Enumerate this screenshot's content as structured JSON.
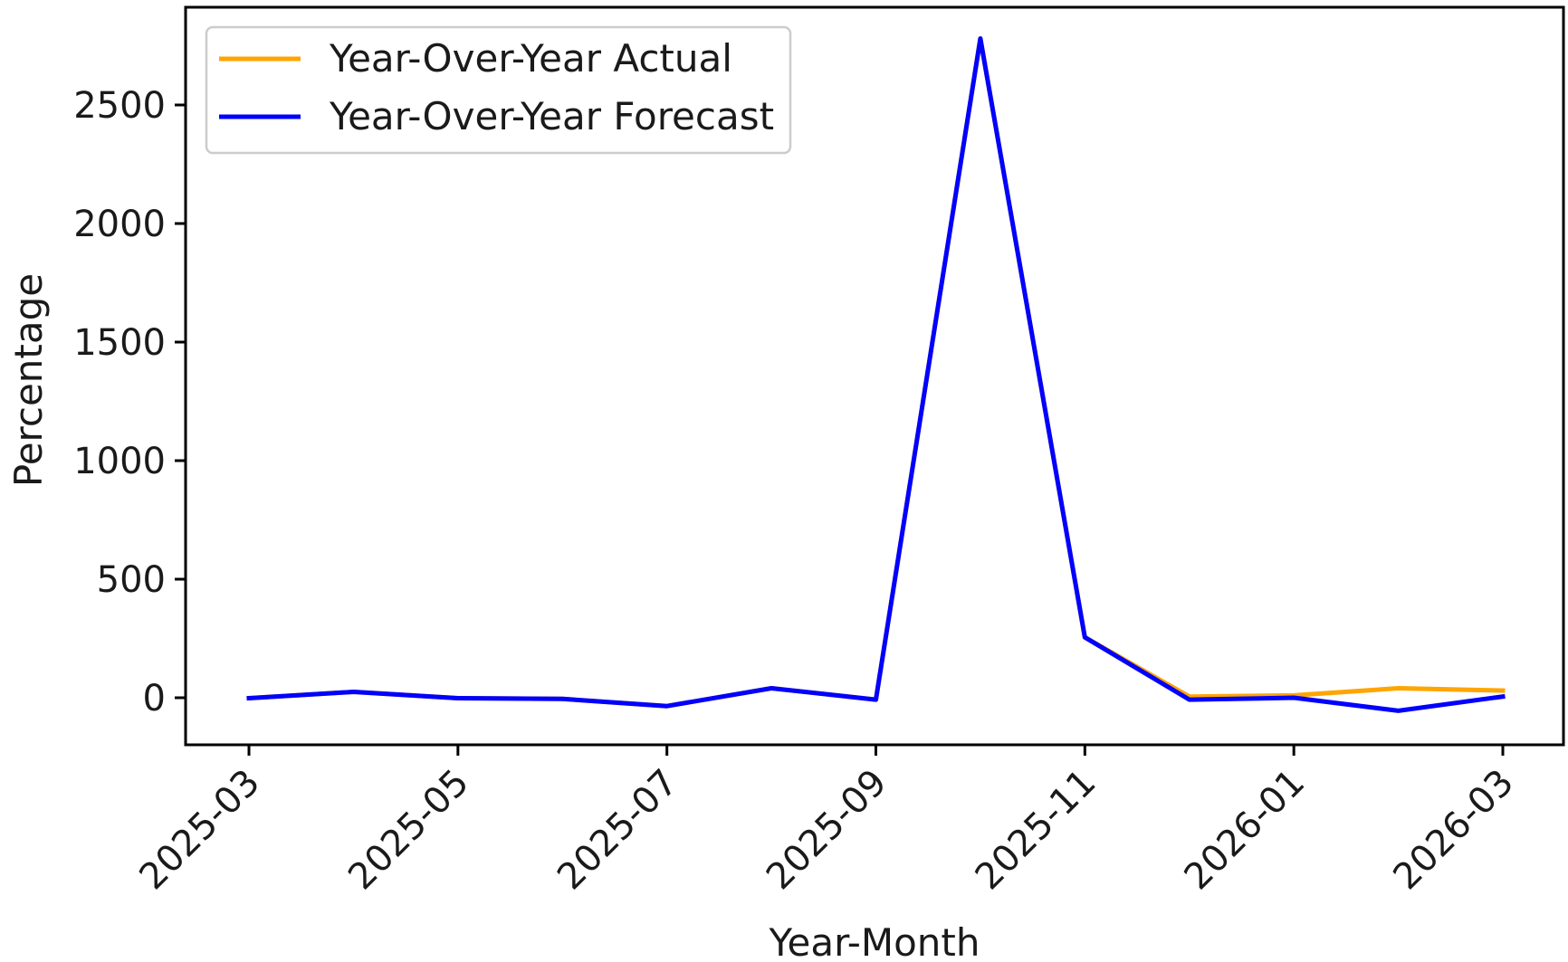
{
  "chart_data": {
    "type": "line",
    "title": "",
    "xlabel": "Year-Month",
    "ylabel": "Percentage",
    "x": [
      "2025-03",
      "2025-04",
      "2025-05",
      "2025-06",
      "2025-07",
      "2025-08",
      "2025-09",
      "2025-10",
      "2025-11",
      "2025-12",
      "2026-01",
      "2026-02",
      "2026-03"
    ],
    "x_ticks": [
      "2025-03",
      "2025-05",
      "2025-07",
      "2025-09",
      "2025-11",
      "2026-01",
      "2026-03"
    ],
    "y_ticks": [
      0,
      500,
      1000,
      1500,
      2000,
      2500
    ],
    "ylim": [
      -200,
      2900
    ],
    "grid": false,
    "legend_position": "upper-left",
    "series": [
      {
        "name": "Year-Over-Year Actual",
        "color": "#FFA500",
        "values": [
          -2,
          25,
          -2,
          -5,
          -35,
          40,
          -8,
          2780,
          255,
          5,
          10,
          40,
          30
        ]
      },
      {
        "name": "Year-Over-Year Forecast",
        "color": "#0000FF",
        "values": [
          -2,
          25,
          -2,
          -5,
          -35,
          40,
          -8,
          2780,
          255,
          -8,
          0,
          -55,
          5
        ]
      }
    ]
  }
}
